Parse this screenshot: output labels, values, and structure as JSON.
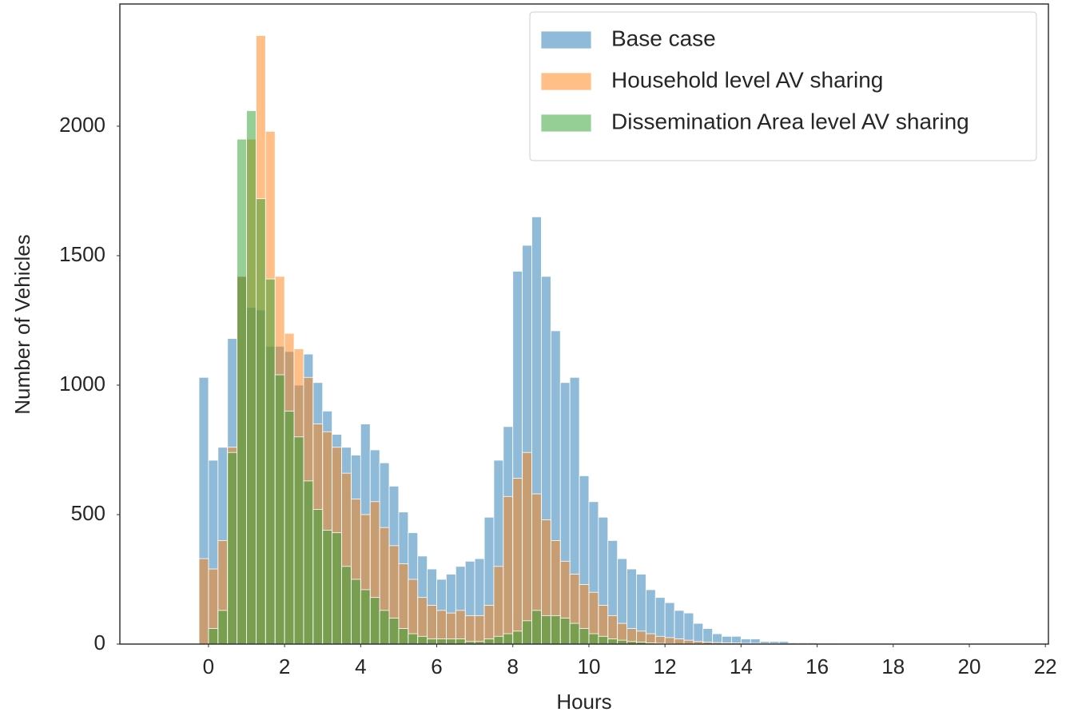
{
  "chart_data": {
    "type": "histogram",
    "x_label": "Hours",
    "y_label": "Number of Vehicles",
    "bins": [
      -0.25,
      0,
      0.25,
      0.5,
      0.75,
      1,
      1.25,
      1.5,
      1.75,
      2,
      2.25,
      2.5,
      2.75,
      3,
      3.25,
      3.5,
      3.75,
      4,
      4.25,
      4.5,
      4.75,
      5,
      5.25,
      5.5,
      5.75,
      6,
      6.25,
      6.5,
      6.75,
      7,
      7.25,
      7.5,
      7.75,
      8,
      8.25,
      8.5,
      8.75,
      9,
      9.25,
      9.5,
      9.75,
      10,
      10.25,
      10.5,
      10.75,
      11,
      11.25,
      11.5,
      11.75,
      12,
      12.25,
      12.5,
      12.75,
      13,
      13.25,
      13.5,
      13.75,
      14,
      14.25,
      14.5,
      14.75,
      15,
      15.25,
      15.5,
      15.75,
      16,
      16.25,
      16.5,
      16.75,
      17,
      17.25,
      17.5,
      17.75,
      18,
      18.25,
      18.5,
      18.75,
      19,
      19.25
    ],
    "series": [
      {
        "name": "Base case",
        "color": "#1f77b4",
        "values": [
          1030,
          710,
          760,
          1180,
          1420,
          1300,
          1290,
          1150,
          1150,
          1130,
          1000,
          1120,
          1010,
          900,
          810,
          760,
          730,
          850,
          750,
          700,
          610,
          510,
          430,
          340,
          290,
          250,
          270,
          300,
          320,
          330,
          490,
          710,
          840,
          1440,
          1540,
          1650,
          1420,
          1210,
          1010,
          1030,
          650,
          550,
          490,
          400,
          330,
          290,
          270,
          210,
          180,
          160,
          130,
          120,
          80,
          60,
          40,
          30,
          30,
          20,
          20,
          10,
          10,
          10,
          5,
          5,
          5,
          3,
          3,
          2,
          2,
          2,
          1,
          1,
          2,
          1,
          0,
          0,
          0,
          0
        ]
      },
      {
        "name": "Household level AV sharing",
        "color": "#ff7f0e",
        "values": [
          330,
          290,
          400,
          760,
          1420,
          1950,
          2350,
          1980,
          1420,
          1200,
          1140,
          1030,
          850,
          820,
          760,
          660,
          560,
          500,
          550,
          450,
          380,
          310,
          250,
          180,
          150,
          130,
          120,
          130,
          110,
          110,
          150,
          300,
          570,
          640,
          740,
          580,
          480,
          400,
          320,
          270,
          230,
          200,
          150,
          110,
          80,
          60,
          50,
          40,
          30,
          25,
          20,
          15,
          10,
          8,
          6,
          5,
          4,
          3,
          3,
          2,
          2,
          1,
          1,
          1,
          1,
          0,
          0,
          0,
          0,
          0,
          0,
          0,
          0,
          0,
          0,
          0,
          0,
          0
        ]
      },
      {
        "name": "Dissemination Area level AV sharing",
        "color": "#2ca02c",
        "values": [
          0,
          60,
          130,
          740,
          1950,
          2060,
          1720,
          1410,
          1040,
          900,
          800,
          630,
          520,
          440,
          430,
          300,
          250,
          210,
          180,
          130,
          100,
          60,
          40,
          30,
          20,
          20,
          20,
          20,
          10,
          10,
          20,
          30,
          40,
          50,
          90,
          130,
          110,
          110,
          100,
          80,
          60,
          40,
          30,
          20,
          15,
          10,
          8,
          5,
          3,
          2,
          1,
          1,
          1,
          0,
          0,
          0,
          0,
          0,
          0,
          0,
          0,
          0,
          0,
          0,
          0,
          0,
          0,
          0,
          0,
          0,
          0,
          0,
          0,
          0,
          0,
          0,
          0,
          0
        ]
      }
    ],
    "xlim": [
      -2.33,
      22.08
    ],
    "xticks": [
      0,
      2,
      4,
      6,
      8,
      10,
      12,
      14,
      16,
      18,
      20,
      22
    ],
    "ylim": [
      0,
      2472
    ],
    "yticks": [
      0,
      500,
      1000,
      1500,
      2000
    ],
    "grid": false,
    "legend": "upper right"
  }
}
